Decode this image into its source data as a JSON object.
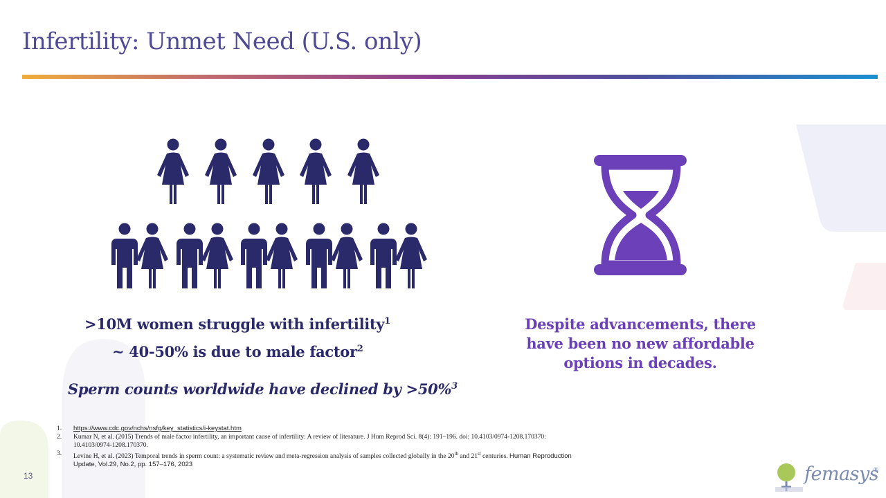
{
  "slide": {
    "title": "Infertility: Unmet Need (U.S. only)",
    "page_number": "13"
  },
  "left_panel": {
    "stat_women": ">10M women struggle with infertility",
    "stat_women_ref": "1",
    "stat_male": "~ 40-50% is due to male factor",
    "stat_male_ref": "2",
    "stat_sperm": "Sperm counts worldwide have declined by >50%",
    "stat_sperm_ref": "3",
    "icons": {
      "women_icon": "woman-figure-icon",
      "couple_icon": "couple-figure-icon"
    }
  },
  "right_panel": {
    "statement_line1": "Despite advancements, there",
    "statement_line2": "have been no new affordable",
    "statement_line3": "options in decades.",
    "icon": "hourglass-icon"
  },
  "references": {
    "r1_num": "1.",
    "r1_link": "https://www.cdc.gov/nchs/nsfg/key_statistics/i-keystat.htm",
    "r2_num": "2.",
    "r2_line1": "Kumar N, et al. (2015) Trends of male factor infertility, an important cause of infertility: A review of literature. J Hum Reprod Sci. 8(4): 191–196. doi: 10.4103/0974-1208.170370:",
    "r2_line2": "10.4103/0974-1208.170370.",
    "r3_num": "3.",
    "r3_line1_a": "Levine H, et al. (2023) Temporal trends in sperm count: a systematic review and meta-regression analysis of samples collected globally in the 20",
    "r3_sup_th": "th",
    "r3_line1_b": " and 21",
    "r3_sup_st": "st",
    "r3_line1_c": " centuries. ",
    "r3_line1_d": "Human Reproduction",
    "r3_line2": "Update, Vol.29, No.2, pp. 157–176, 2023"
  },
  "logo": {
    "text": "femasys",
    "trademark": "®"
  },
  "colors": {
    "title": "#4f4a94",
    "figures": "#2a2a6a",
    "hourglass": "#6b40b8",
    "statement": "#6b40b8"
  }
}
